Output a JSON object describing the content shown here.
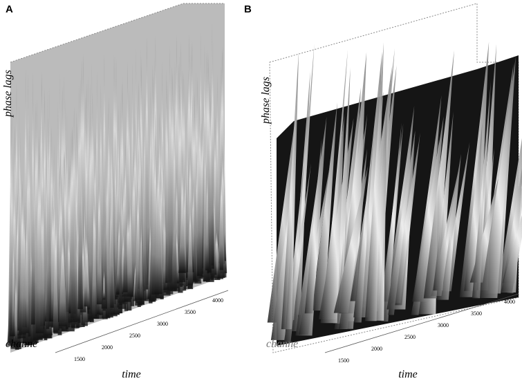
{
  "panels": [
    {
      "label": "A",
      "x_label": "time",
      "y_label": "phase lags",
      "z_label": "channe",
      "x_ticks": [
        "1500",
        "2000",
        "2500",
        "3000",
        "3500",
        "4000"
      ]
    },
    {
      "label": "B",
      "x_label": "time",
      "y_label": "phase lags",
      "z_label": "channe",
      "x_ticks": [
        "1500",
        "2000",
        "2500",
        "3000",
        "3500",
        "4000"
      ]
    }
  ]
}
